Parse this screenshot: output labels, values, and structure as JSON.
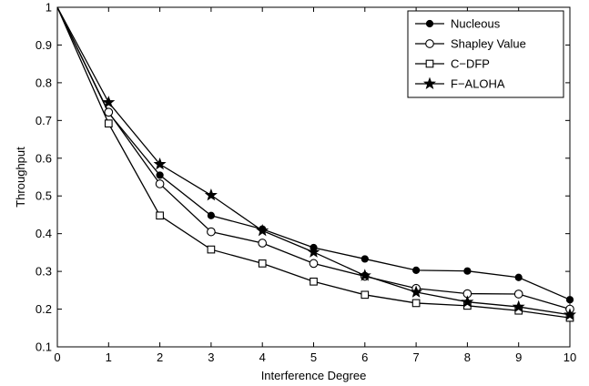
{
  "chart_data": {
    "type": "line",
    "xlabel": "Interference Degree",
    "ylabel": "Throughput",
    "xlim": [
      0,
      10
    ],
    "ylim": [
      0.1,
      1
    ],
    "xticks": [
      "0",
      "1",
      "2",
      "3",
      "4",
      "5",
      "6",
      "7",
      "8",
      "9",
      "10"
    ],
    "yticks": [
      "0.1",
      "0.2",
      "0.3",
      "0.4",
      "0.5",
      "0.6",
      "0.7",
      "0.8",
      "0.9",
      "1"
    ],
    "grid": false,
    "legend_position": "top-right",
    "x": [
      0,
      1,
      2,
      3,
      4,
      5,
      6,
      7,
      8,
      9,
      10
    ],
    "series": [
      {
        "name": "Nucleous",
        "marker": "filled-circle",
        "color": "#000000",
        "values": [
          1.0,
          0.72,
          0.555,
          0.448,
          0.412,
          0.363,
          0.333,
          0.303,
          0.301,
          0.284,
          0.225
        ]
      },
      {
        "name": "Shapley Value",
        "marker": "open-circle",
        "color": "#000000",
        "values": [
          1.0,
          0.722,
          0.532,
          0.405,
          0.375,
          0.321,
          0.287,
          0.255,
          0.241,
          0.24,
          0.2
        ]
      },
      {
        "name": "C−DFP",
        "marker": "open-square",
        "color": "#000000",
        "values": [
          1.0,
          0.692,
          0.448,
          0.358,
          0.321,
          0.273,
          0.238,
          0.216,
          0.209,
          0.196,
          0.177
        ]
      },
      {
        "name": "F−ALOHA",
        "marker": "star",
        "color": "#000000",
        "values": [
          1.0,
          0.748,
          0.584,
          0.502,
          0.408,
          0.351,
          0.289,
          0.245,
          0.219,
          0.206,
          0.185
        ]
      }
    ]
  }
}
